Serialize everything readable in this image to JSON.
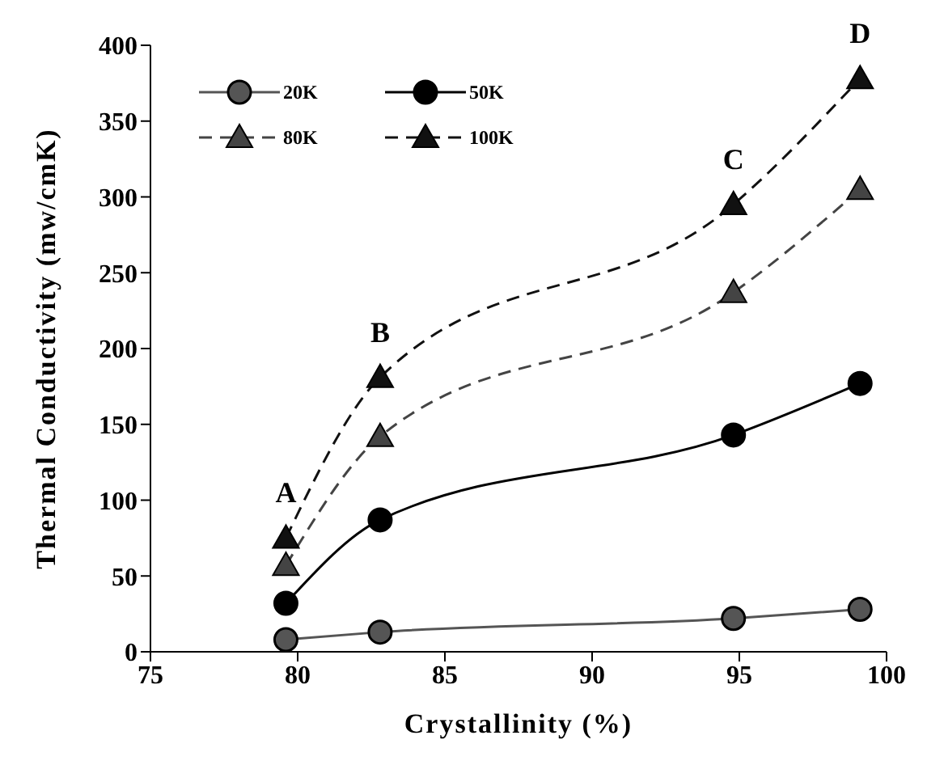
{
  "chart_data": {
    "type": "line",
    "xlabel": "Crystallinity (%)",
    "ylabel": "Thermal Conductivity (mw/cmK)",
    "x": [
      79.6,
      82.8,
      94.8,
      99.1
    ],
    "series": [
      {
        "name": "20K",
        "color": "#555555",
        "values": [
          8,
          13,
          22,
          28
        ],
        "marker": "circle",
        "line_style": "solid"
      },
      {
        "name": "50K",
        "color": "#000000",
        "values": [
          32,
          87,
          143,
          177
        ],
        "marker": "circle",
        "line_style": "solid"
      },
      {
        "name": "80K",
        "color": "#444444",
        "values": [
          57,
          142,
          237,
          305
        ],
        "marker": "triangle",
        "line_style": "dashed"
      },
      {
        "name": "100K",
        "color": "#111111",
        "values": [
          75,
          181,
          295,
          378
        ],
        "marker": "triangle",
        "line_style": "dashed"
      }
    ],
    "xlim": [
      75,
      100
    ],
    "xticks": [
      75,
      80,
      85,
      90,
      95,
      100
    ],
    "ylim": [
      0,
      400
    ],
    "yticks": [
      0,
      50,
      100,
      150,
      200,
      250,
      300,
      350,
      400
    ],
    "grid": false,
    "legend": "top left",
    "annotations": [
      "A",
      "B",
      "C",
      "D"
    ]
  }
}
